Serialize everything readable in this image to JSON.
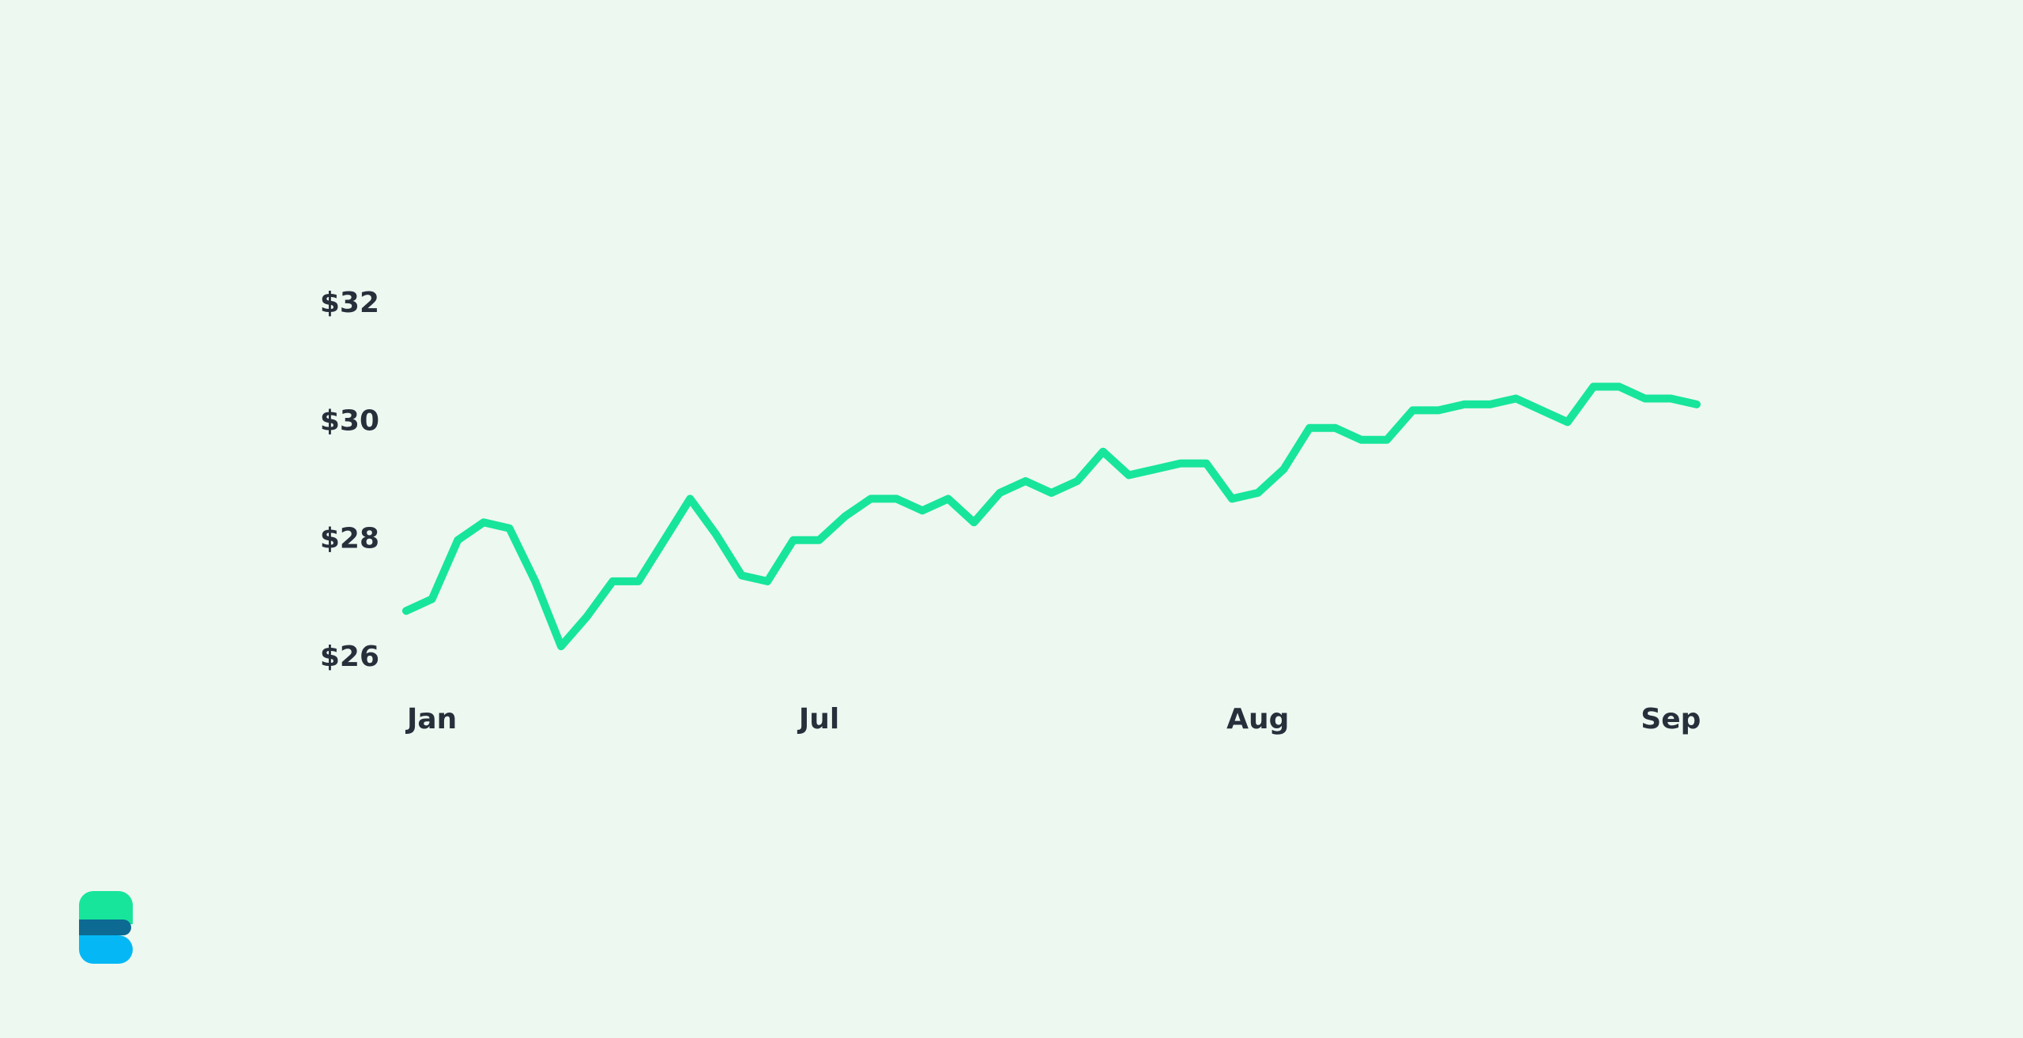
{
  "chart_data": {
    "type": "line",
    "categories": [
      null,
      "Jan",
      null,
      null,
      null,
      null,
      null,
      null,
      null,
      null,
      null,
      null,
      null,
      null,
      null,
      null,
      "Jul",
      null,
      null,
      null,
      null,
      null,
      null,
      null,
      null,
      null,
      null,
      null,
      null,
      null,
      null,
      null,
      null,
      "Aug",
      null,
      null,
      null,
      null,
      null,
      null,
      null,
      null,
      null,
      null,
      null,
      null,
      null,
      null,
      null,
      "Sep",
      null
    ],
    "values": [
      26.8,
      27.0,
      28.0,
      28.3,
      28.2,
      27.3,
      26.2,
      26.7,
      27.3,
      27.3,
      28.0,
      28.7,
      28.1,
      27.4,
      27.3,
      28.0,
      28.0,
      28.4,
      28.7,
      28.7,
      28.5,
      28.7,
      28.3,
      28.8,
      29.0,
      28.8,
      29.0,
      29.5,
      29.1,
      29.2,
      29.3,
      29.3,
      28.7,
      28.8,
      29.2,
      29.9,
      29.9,
      29.7,
      29.7,
      30.2,
      30.2,
      30.3,
      30.3,
      30.4,
      30.2,
      30.0,
      30.6,
      30.6,
      30.4,
      30.4,
      30.3
    ],
    "color": "#17e59b",
    "ylim": [
      26,
      32
    ],
    "yticks": [
      {
        "value": 26,
        "label": "$26"
      },
      {
        "value": 28,
        "label": "$28"
      },
      {
        "value": 30,
        "label": "$30"
      },
      {
        "value": 32,
        "label": "$32"
      }
    ],
    "grid": false
  }
}
